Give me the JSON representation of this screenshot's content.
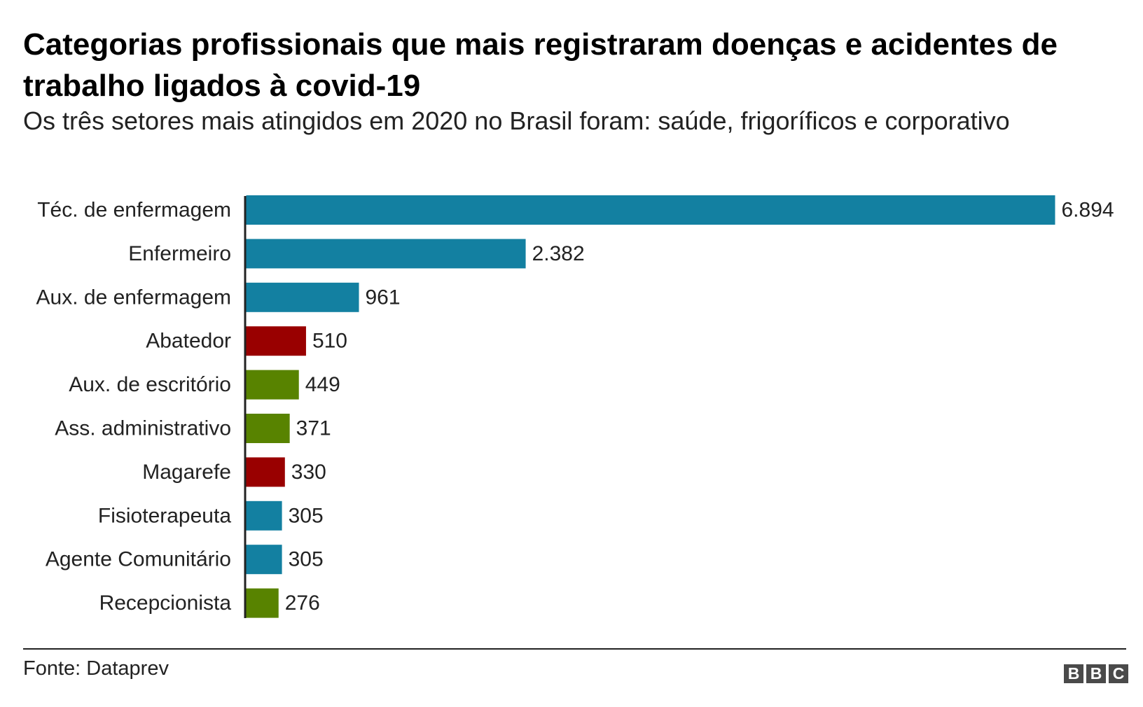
{
  "title": "Categorias profissionais que mais registraram doenças e acidentes de trabalho ligados à covid-19",
  "subtitle": "Os três setores mais atingidos em 2020 no Brasil foram: saúde, frigoríficos e corporativo",
  "source": "Fonte: Dataprev",
  "logo": {
    "letters": [
      "B",
      "B",
      "C"
    ]
  },
  "colors": {
    "saude": "#1380A1",
    "frigorificos": "#990000",
    "corporativo": "#588300",
    "axis": "#222222",
    "text": "#222222"
  },
  "chart_data": {
    "type": "bar",
    "orientation": "horizontal",
    "title": "Categorias profissionais que mais registraram doenças e acidentes de trabalho ligados à covid-19",
    "subtitle": "Os três setores mais atingidos em 2020 no Brasil foram: saúde, frigoríficos e corporativo",
    "categories": [
      "Téc. de enfermagem",
      "Enfermeiro",
      "Aux. de enfermagem",
      "Abatedor",
      "Aux. de escritório",
      "Ass. administrativo",
      "Magarefe",
      "Fisioterapeuta",
      "Agente Comunitário",
      "Recepcionista"
    ],
    "values": [
      6894,
      2382,
      961,
      510,
      449,
      371,
      330,
      305,
      305,
      276
    ],
    "value_labels": [
      "6.894",
      "2.382",
      "961",
      "510",
      "449",
      "371",
      "330",
      "305",
      "305",
      "276"
    ],
    "sectors": [
      "saude",
      "saude",
      "saude",
      "frigorificos",
      "corporativo",
      "corporativo",
      "frigorificos",
      "saude",
      "saude",
      "corporativo"
    ],
    "xlim": [
      0,
      6894
    ],
    "grid": false,
    "legend": "none",
    "source": "Fonte: Dataprev"
  }
}
